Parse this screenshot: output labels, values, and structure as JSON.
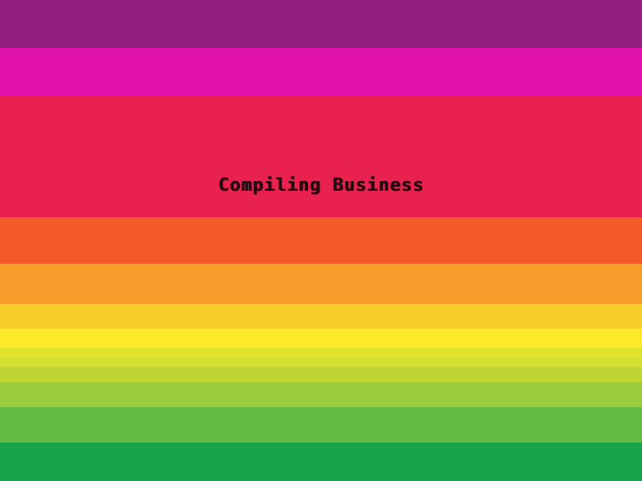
{
  "screen": {
    "loading_text": "Compiling Business"
  },
  "colors": {
    "band_0": "#931f80",
    "band_1": "#e112ac",
    "band_2": "#e8214e",
    "band_3": "#f4592a",
    "band_4": "#f79c2a",
    "band_5": "#f9cd2b",
    "band_6": "#fbe92a",
    "band_7": "#e2e32c",
    "band_8": "#d3de2f",
    "band_9": "#bed533",
    "band_10": "#9acb3a",
    "band_11": "#62bb44",
    "band_12": "#18a34a",
    "text": "#2a0a12"
  }
}
